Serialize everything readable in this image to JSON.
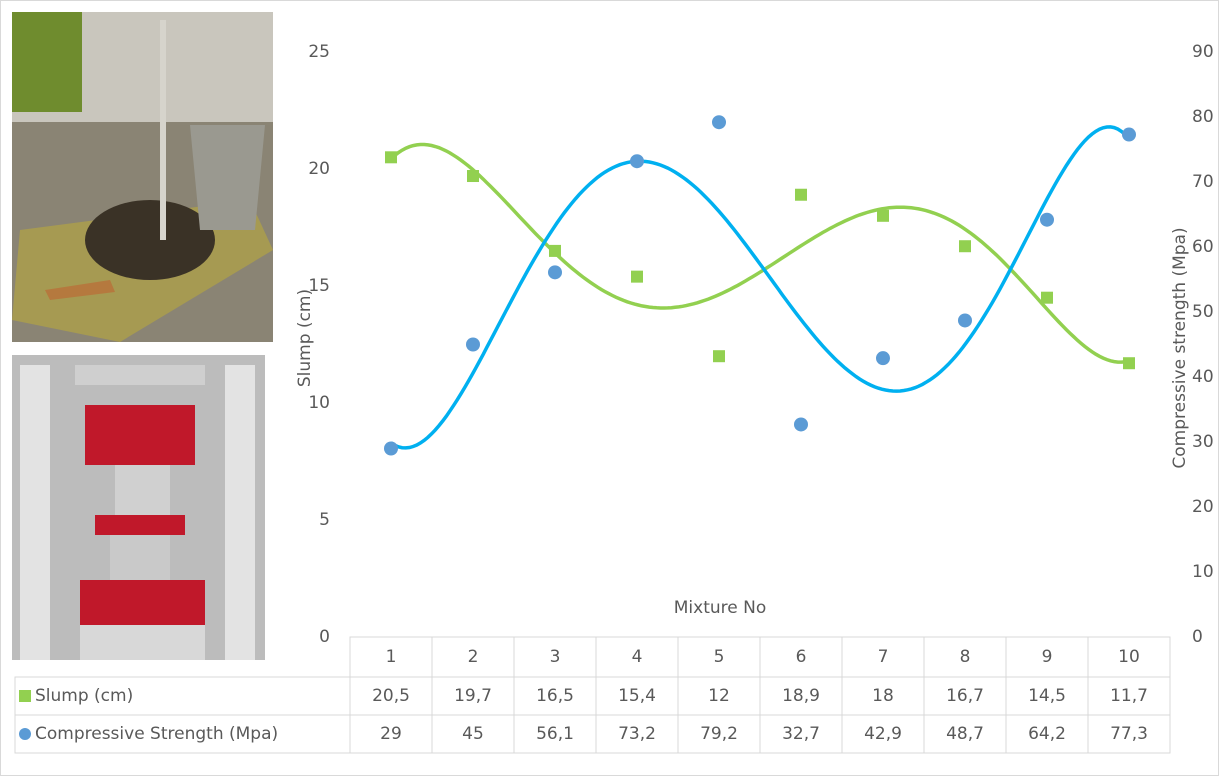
{
  "chart_data": {
    "type": "scatter",
    "x_label": "Mixture No",
    "y_label": "Slump (cm)",
    "y2_label": "Compressive strength (Mpa)",
    "categories": [
      "1",
      "2",
      "3",
      "4",
      "5",
      "6",
      "7",
      "8",
      "9",
      "10"
    ],
    "series": [
      {
        "name": "Slump (cm)",
        "color": "#92d050",
        "marker": "square",
        "values": [
          20.5,
          19.7,
          16.5,
          15.4,
          12,
          18.9,
          18,
          16.7,
          14.5,
          11.7
        ],
        "value_labels": [
          "20,5",
          "19,7",
          "16,5",
          "15,4",
          "12",
          "18,9",
          "18",
          "16,7",
          "14,5",
          "11,7"
        ]
      },
      {
        "name": "Compressive Strength (Mpa)",
        "color": "#5b9bd5",
        "marker": "circle",
        "axis": "y2",
        "values": [
          29,
          45,
          56.1,
          73.2,
          79.2,
          32.7,
          42.9,
          48.7,
          64.2,
          77.3
        ],
        "value_labels": [
          "29",
          "45",
          "56,1",
          "73,2",
          "79,2",
          "32,7",
          "42,9",
          "48,7",
          "64,2",
          "77,3"
        ]
      }
    ],
    "ylim": [
      0,
      25
    ],
    "yticks": [
      0,
      5,
      10,
      15,
      20,
      25
    ],
    "y2lim": [
      0,
      90
    ],
    "y2ticks": [
      0,
      10,
      20,
      30,
      40,
      50,
      60,
      70,
      80,
      90
    ],
    "trendline": true,
    "data_table": true
  }
}
